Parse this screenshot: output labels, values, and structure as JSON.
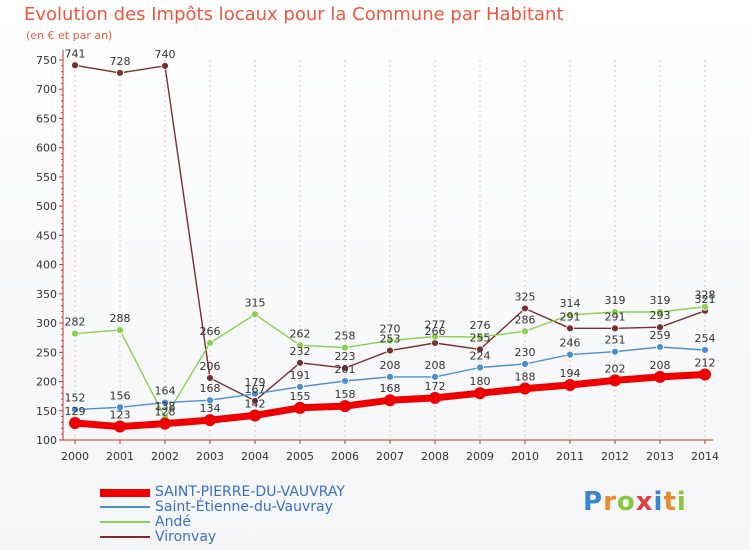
{
  "chart_data": {
    "type": "line",
    "title": "Evolution des Impôts locaux pour la Commune par Habitant",
    "subtitle": "(en € et par an)",
    "xlabel": "",
    "ylabel": "",
    "x": [
      "2000",
      "2001",
      "2002",
      "2003",
      "2004",
      "2005",
      "2006",
      "2007",
      "2008",
      "2009",
      "2010",
      "2011",
      "2012",
      "2013",
      "2014"
    ],
    "ylim": [
      100,
      750
    ],
    "yticks": [
      "100",
      "150",
      "200",
      "250",
      "300",
      "350",
      "400",
      "450",
      "500",
      "550",
      "600",
      "650",
      "700",
      "750"
    ],
    "series": [
      {
        "name": "SAINT-PIERRE-DU-VAUVRAY",
        "color": "#ee0000",
        "values": [
          129,
          123,
          128,
          134,
          142,
          155,
          158,
          168,
          172,
          180,
          188,
          194,
          202,
          208,
          212
        ],
        "labels": [
          "129",
          "123",
          "128",
          "134",
          "142",
          "155",
          "158",
          "168",
          "172",
          "180",
          "188",
          "194",
          "202",
          "208",
          "212"
        ]
      },
      {
        "name": "Saint-Étienne-du-Vauvray",
        "color": "#4a90cf",
        "values": [
          152,
          156,
          164,
          168,
          179,
          191,
          201,
          208,
          208,
          224,
          230,
          246,
          251,
          259,
          254
        ],
        "labels": [
          "152",
          "156",
          "164",
          "168",
          "179",
          "191",
          "201",
          "208",
          "208",
          "224",
          "230",
          "246",
          "251",
          "259",
          "254"
        ]
      },
      {
        "name": "Andé",
        "color": "#88d04e",
        "values": [
          282,
          288,
          138,
          266,
          315,
          262,
          258,
          270,
          277,
          276,
          286,
          314,
          319,
          319,
          328
        ],
        "labels": [
          "282",
          "288",
          "138",
          "266",
          "315",
          "262",
          "258",
          "270",
          "277",
          "276",
          "286",
          "314",
          "319",
          "319",
          "328"
        ]
      },
      {
        "name": "Vironvay",
        "color": "#7a2e2e",
        "values": [
          741,
          728,
          740,
          206,
          167,
          232,
          223,
          253,
          266,
          255,
          325,
          291,
          291,
          293,
          321
        ],
        "labels": [
          "741",
          "728",
          "740",
          "206",
          "167",
          "232",
          "223",
          "253",
          "266",
          "255",
          "325",
          "291",
          "291",
          "293",
          "321"
        ]
      }
    ]
  },
  "logo": {
    "letters": [
      "P",
      "r",
      "o",
      "x",
      "i",
      "t",
      "i"
    ],
    "colors": [
      "#3a85d0",
      "#e88a2a",
      "#8cc63f",
      "#e04040",
      "#3a85d0",
      "#e88a2a",
      "#8cc63f"
    ]
  }
}
